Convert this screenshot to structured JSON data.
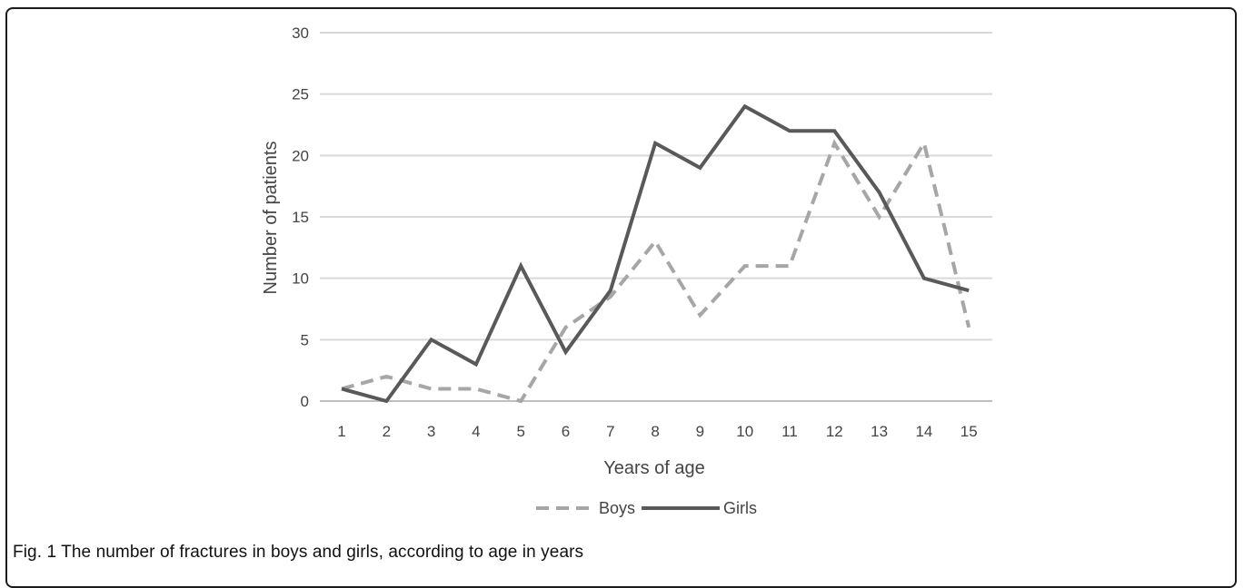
{
  "caption": "Fig.  1 The  number  of  fractures  in boys  and  girls,  according  to age  in years",
  "chart_data": {
    "type": "line",
    "x": [
      1,
      2,
      3,
      4,
      5,
      6,
      7,
      8,
      9,
      10,
      11,
      12,
      13,
      14,
      15
    ],
    "x_tick_labels": [
      "1",
      "2",
      "3",
      "4",
      "5",
      "6",
      "7",
      "8",
      "9",
      "10",
      "11",
      "12",
      "13",
      "14",
      "15"
    ],
    "y_ticks": [
      0,
      5,
      10,
      15,
      20,
      25,
      30
    ],
    "ylim": [
      0,
      30
    ],
    "xlabel": "Years of age",
    "ylabel": "Number of patients",
    "grid": "horizontal",
    "legend": "bottom-center",
    "series": [
      {
        "name": "Boys",
        "values": [
          1,
          2,
          1,
          1,
          0,
          6,
          8.5,
          13,
          7,
          11,
          11,
          21,
          15,
          21,
          6
        ],
        "color": "#a6a6a6",
        "style": "dashed"
      },
      {
        "name": "Girls",
        "values": [
          1,
          0,
          5,
          3,
          11,
          4,
          9,
          21,
          19,
          24,
          22,
          22,
          17,
          10,
          9
        ],
        "color": "#595959",
        "style": "solid"
      }
    ]
  }
}
